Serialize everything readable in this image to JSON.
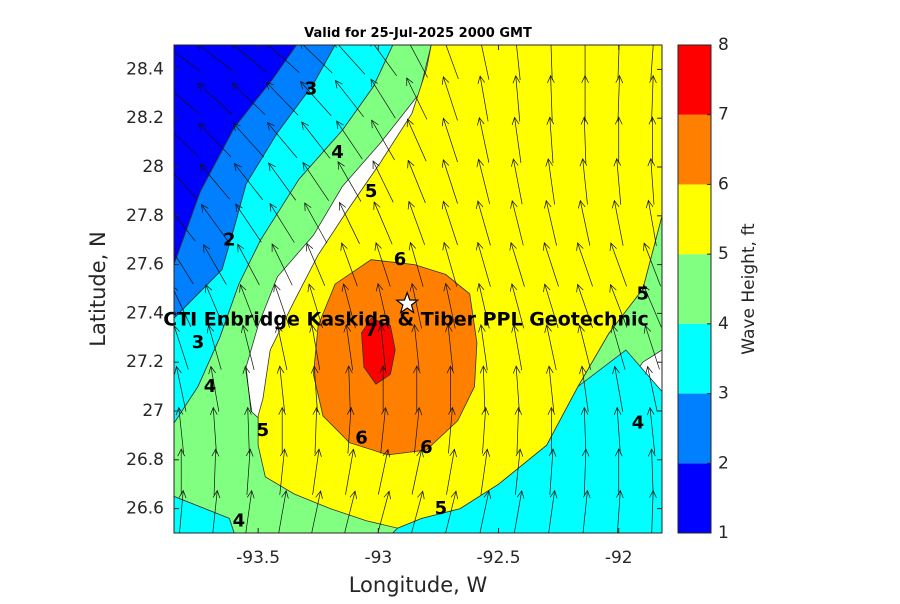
{
  "chart_data": {
    "type": "contour",
    "title": "Valid for 25-Jul-2025 2000 GMT",
    "xlabel": "Longitude, W",
    "ylabel": "Latitude, N",
    "xlim": [
      -93.85,
      -91.82
    ],
    "ylim": [
      26.5,
      28.5
    ],
    "x_ticks": [
      -93.5,
      -93,
      -92.5,
      -92
    ],
    "x_tick_labels": [
      "-93.5",
      "-93",
      "-92.5",
      "-92"
    ],
    "y_ticks": [
      26.6,
      26.8,
      27,
      27.2,
      27.4,
      27.6,
      27.8,
      28,
      28.2,
      28.4
    ],
    "y_tick_labels": [
      "26.6",
      "26.8",
      "27",
      "27.2",
      "27.4",
      "27.6",
      "27.8",
      "28",
      "28.2",
      "28.4"
    ],
    "colorbar": {
      "label": "Wave Height, ft",
      "levels": [
        1,
        2,
        3,
        4,
        5,
        6,
        7,
        8
      ],
      "tick_labels": [
        "1",
        "2",
        "3",
        "4",
        "5",
        "6",
        "7",
        "8"
      ],
      "colors": [
        "#0000ff",
        "#0080ff",
        "#00ffff",
        "#80ff80",
        "#ffff00",
        "#ff8000",
        "#ff0000"
      ]
    },
    "bands": [
      {
        "range": [
          1,
          2
        ],
        "color": "#0000ff",
        "points": [
          [
            -93.85,
            28.5
          ],
          [
            -93.34,
            28.5
          ],
          [
            -93.44,
            28.36
          ],
          [
            -93.6,
            28.16
          ],
          [
            -93.74,
            27.9
          ],
          [
            -93.85,
            27.6
          ]
        ]
      },
      {
        "range": [
          2,
          3
        ],
        "color": "#0080ff",
        "points": [
          [
            -93.34,
            28.5
          ],
          [
            -93.18,
            28.5
          ],
          [
            -93.27,
            28.34
          ],
          [
            -93.42,
            28.14
          ],
          [
            -93.55,
            27.93
          ],
          [
            -93.6,
            27.75
          ],
          [
            -93.65,
            27.58
          ],
          [
            -93.85,
            27.38
          ],
          [
            -93.85,
            27.6
          ],
          [
            -93.74,
            27.9
          ],
          [
            -93.6,
            28.16
          ],
          [
            -93.44,
            28.36
          ]
        ]
      },
      {
        "range": [
          3,
          4
        ],
        "color": "#00ffff",
        "points": [
          [
            -93.18,
            28.5
          ],
          [
            -92.94,
            28.5
          ],
          [
            -93.02,
            28.33
          ],
          [
            -93.15,
            28.15
          ],
          [
            -93.33,
            27.95
          ],
          [
            -93.49,
            27.7
          ],
          [
            -93.58,
            27.52
          ],
          [
            -93.66,
            27.3
          ],
          [
            -93.75,
            27.1
          ],
          [
            -93.85,
            26.95
          ],
          [
            -93.85,
            27.38
          ],
          [
            -93.65,
            27.58
          ],
          [
            -93.6,
            27.75
          ],
          [
            -93.55,
            27.93
          ],
          [
            -93.42,
            28.14
          ],
          [
            -93.27,
            28.34
          ]
        ]
      },
      {
        "range": [
          4,
          5
        ],
        "color": "#80ff80",
        "points": [
          [
            -92.94,
            28.5
          ],
          [
            -92.78,
            28.5
          ],
          [
            -92.83,
            28.3
          ],
          [
            -92.99,
            28.1
          ],
          [
            -93.15,
            27.92
          ],
          [
            -93.27,
            27.72
          ],
          [
            -93.42,
            27.55
          ],
          [
            -93.5,
            27.35
          ],
          [
            -93.55,
            27.18
          ],
          [
            -93.53,
            27.0
          ],
          [
            -93.38,
            26.86
          ],
          [
            -93.16,
            26.76
          ],
          [
            -92.95,
            26.63
          ],
          [
            -92.75,
            26.6
          ],
          [
            -92.6,
            26.62
          ],
          [
            -92.38,
            26.7
          ],
          [
            -92.2,
            26.8
          ],
          [
            -92.05,
            26.98
          ],
          [
            -91.9,
            27.2
          ],
          [
            -91.82,
            27.25
          ],
          [
            -91.82,
            27.8
          ],
          [
            -91.9,
            27.5
          ],
          [
            -92.04,
            27.32
          ],
          [
            -92.17,
            27.1
          ],
          [
            -92.3,
            26.86
          ],
          [
            -92.5,
            26.7
          ],
          [
            -92.66,
            26.6
          ],
          [
            -92.82,
            26.56
          ],
          [
            -92.92,
            26.52
          ],
          [
            -92.94,
            26.5
          ],
          [
            -93.6,
            26.5
          ],
          [
            -93.62,
            26.56
          ],
          [
            -93.85,
            26.65
          ],
          [
            -93.85,
            26.95
          ],
          [
            -93.75,
            27.1
          ],
          [
            -93.66,
            27.3
          ],
          [
            -93.58,
            27.52
          ],
          [
            -93.49,
            27.7
          ],
          [
            -93.33,
            27.95
          ],
          [
            -93.15,
            28.15
          ],
          [
            -93.02,
            28.33
          ]
        ]
      },
      {
        "range": [
          3,
          4
        ],
        "color": "#00ffff",
        "points": [
          [
            -93.85,
            26.5
          ],
          [
            -93.6,
            26.5
          ],
          [
            -93.62,
            26.56
          ],
          [
            -93.85,
            26.65
          ]
        ]
      },
      {
        "range": [
          3,
          4
        ],
        "color": "#00ffff",
        "points": [
          [
            -91.82,
            26.5
          ],
          [
            -92.94,
            26.5
          ],
          [
            -92.92,
            26.52
          ],
          [
            -92.82,
            26.56
          ],
          [
            -92.66,
            26.6
          ],
          [
            -92.5,
            26.7
          ],
          [
            -92.3,
            26.86
          ],
          [
            -92.17,
            27.1
          ],
          [
            -91.97,
            27.25
          ],
          [
            -91.82,
            27.08
          ]
        ]
      },
      {
        "range": [
          5,
          6
        ],
        "color": "#ffff00",
        "points": [
          [
            -92.78,
            28.5
          ],
          [
            -91.82,
            28.5
          ],
          [
            -91.82,
            27.8
          ],
          [
            -91.9,
            27.5
          ],
          [
            -92.04,
            27.32
          ],
          [
            -92.17,
            27.1
          ],
          [
            -92.3,
            26.86
          ],
          [
            -92.5,
            26.7
          ],
          [
            -92.66,
            26.6
          ],
          [
            -92.82,
            26.56
          ],
          [
            -92.92,
            26.52
          ],
          [
            -93.05,
            26.55
          ],
          [
            -93.2,
            26.6
          ],
          [
            -93.35,
            26.66
          ],
          [
            -93.47,
            26.73
          ],
          [
            -93.5,
            26.86
          ],
          [
            -93.5,
            26.98
          ],
          [
            -93.48,
            27.05
          ],
          [
            -93.45,
            27.25
          ],
          [
            -93.35,
            27.45
          ],
          [
            -93.25,
            27.64
          ],
          [
            -93.13,
            27.82
          ],
          [
            -92.99,
            28.02
          ],
          [
            -92.86,
            28.22
          ],
          [
            -92.8,
            28.4
          ]
        ]
      },
      {
        "range": [
          6,
          7
        ],
        "color": "#ff8000",
        "points": [
          [
            -93.03,
            27.62
          ],
          [
            -92.85,
            27.6
          ],
          [
            -92.72,
            27.56
          ],
          [
            -92.62,
            27.48
          ],
          [
            -92.59,
            27.28
          ],
          [
            -92.6,
            27.1
          ],
          [
            -92.67,
            26.96
          ],
          [
            -92.8,
            26.84
          ],
          [
            -92.96,
            26.82
          ],
          [
            -93.12,
            26.87
          ],
          [
            -93.23,
            26.98
          ],
          [
            -93.27,
            27.15
          ],
          [
            -93.25,
            27.35
          ],
          [
            -93.18,
            27.52
          ]
        ]
      },
      {
        "range": [
          7,
          8
        ],
        "color": "#ff0000",
        "points": [
          [
            -93.03,
            27.38
          ],
          [
            -92.95,
            27.35
          ],
          [
            -92.93,
            27.25
          ],
          [
            -92.95,
            27.15
          ],
          [
            -93.01,
            27.11
          ],
          [
            -93.06,
            27.18
          ],
          [
            -93.07,
            27.32
          ]
        ]
      }
    ],
    "contour_labels": [
      {
        "text": "3",
        "x": -93.28,
        "y": 28.32
      },
      {
        "text": "4",
        "x": -93.17,
        "y": 28.06
      },
      {
        "text": "5",
        "x": -93.03,
        "y": 27.9
      },
      {
        "text": "6",
        "x": -92.91,
        "y": 27.62
      },
      {
        "text": "2",
        "x": -93.62,
        "y": 27.7
      },
      {
        "text": "3",
        "x": -93.75,
        "y": 27.28
      },
      {
        "text": "4",
        "x": -93.7,
        "y": 27.1
      },
      {
        "text": "5",
        "x": -93.48,
        "y": 26.92
      },
      {
        "text": "6",
        "x": -93.07,
        "y": 26.89
      },
      {
        "text": "6",
        "x": -92.8,
        "y": 26.85
      },
      {
        "text": "7",
        "x": -93.03,
        "y": 27.33
      },
      {
        "text": "5",
        "x": -92.74,
        "y": 26.6
      },
      {
        "text": "4",
        "x": -93.58,
        "y": 26.55
      },
      {
        "text": "5",
        "x": -91.9,
        "y": 27.48
      },
      {
        "text": "4",
        "x": -91.92,
        "y": 26.95
      }
    ],
    "site": {
      "name": "CTI Enbridge  Kaskida & Tiber PPL Geotechnic",
      "x": -92.88,
      "y": 27.44
    },
    "vectors": {
      "lon": [
        -93.82,
        -93.68,
        -93.54,
        -93.4,
        -93.26,
        -93.12,
        -92.98,
        -92.84,
        -92.7,
        -92.56,
        -92.42,
        -92.28,
        -92.14,
        -92.0,
        -91.86
      ],
      "lat": [
        26.58,
        26.75,
        26.92,
        27.09,
        27.26,
        27.43,
        27.6,
        27.77,
        27.94,
        28.11,
        28.28,
        28.45
      ],
      "directions_deg": [
        [
          85,
          84,
          82,
          80,
          78,
          76,
          75,
          75,
          76,
          78,
          80,
          82,
          84,
          86,
          88
        ],
        [
          90,
          88,
          86,
          84,
          82,
          80,
          78,
          78,
          80,
          82,
          84,
          86,
          88,
          90,
          92
        ],
        [
          96,
          94,
          92,
          90,
          88,
          86,
          84,
          84,
          85,
          86,
          88,
          90,
          92,
          94,
          96
        ],
        [
          102,
          100,
          98,
          96,
          94,
          92,
          90,
          90,
          90,
          92,
          94,
          96,
          98,
          100,
          102
        ],
        [
          108,
          106,
          104,
          102,
          100,
          98,
          96,
          96,
          96,
          98,
          100,
          102,
          104,
          106,
          108
        ],
        [
          115,
          113,
          111,
          109,
          107,
          105,
          103,
          102,
          102,
          103,
          105,
          107,
          109,
          111,
          113
        ],
        [
          122,
          120,
          118,
          116,
          113,
          110,
          108,
          106,
          106,
          106,
          107,
          108,
          109,
          110,
          111
        ],
        [
          128,
          126,
          124,
          122,
          119,
          116,
          113,
          110,
          108,
          106,
          104,
          103,
          102,
          101,
          100
        ],
        [
          132,
          130,
          128,
          126,
          124,
          120,
          116,
          112,
          108,
          104,
          101,
          98,
          96,
          95,
          94
        ],
        [
          136,
          134,
          132,
          130,
          128,
          124,
          120,
          114,
          108,
          102,
          98,
          94,
          92,
          90,
          90
        ],
        [
          140,
          138,
          136,
          134,
          132,
          128,
          122,
          116,
          108,
          100,
          95,
          92,
          90,
          88,
          88
        ],
        [
          144,
          142,
          140,
          138,
          136,
          132,
          126,
          118,
          110,
          102,
          96,
          92,
          90,
          88,
          86
        ]
      ]
    }
  }
}
